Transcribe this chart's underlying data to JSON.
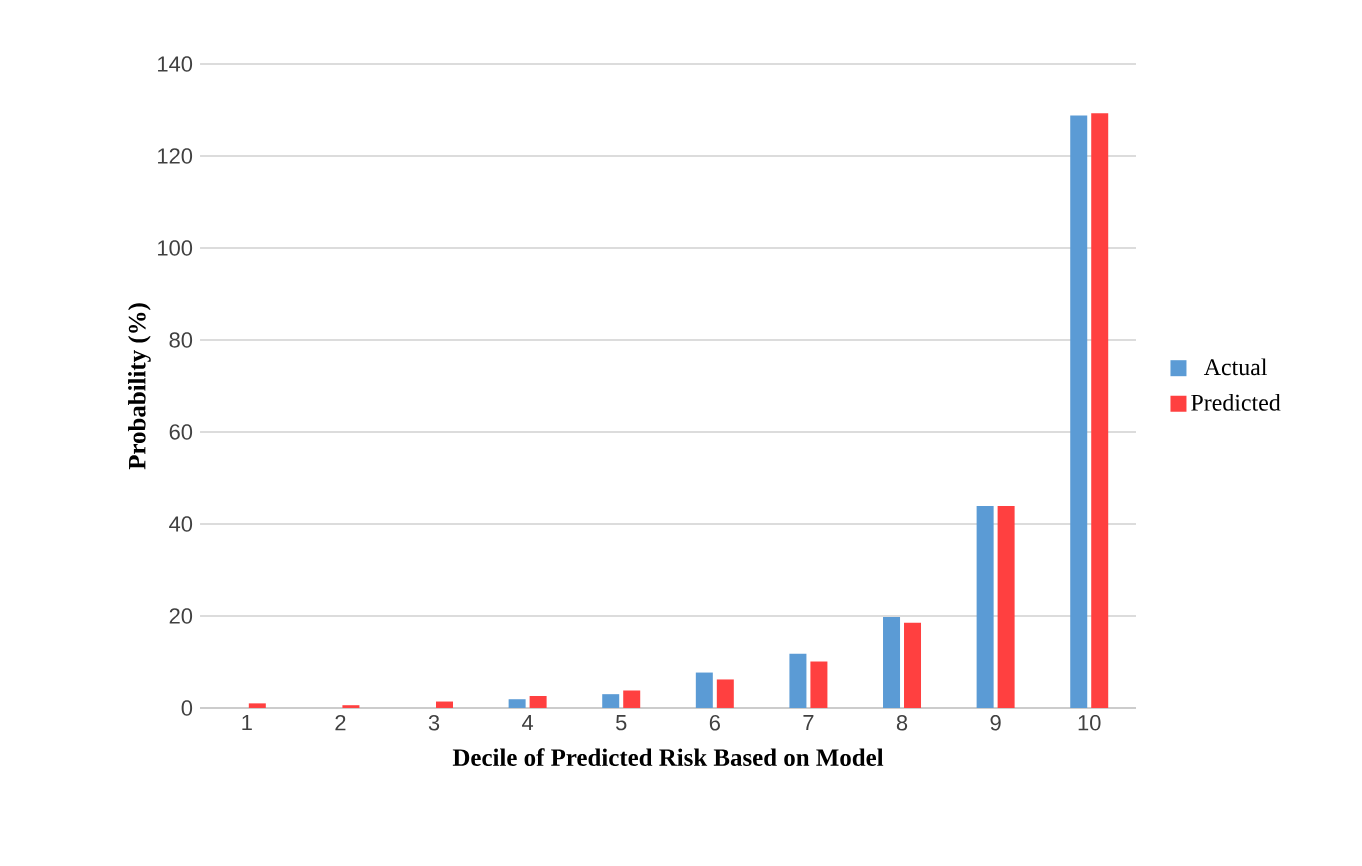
{
  "chart_data": {
    "type": "bar",
    "xlabel": "Decile of Predicted Risk Based on Model",
    "ylabel": "Probability (%)",
    "categories": [
      "1",
      "2",
      "3",
      "4",
      "5",
      "6",
      "7",
      "8",
      "9",
      "10"
    ],
    "series": [
      {
        "name": "Actual",
        "color": "#5b9bd5",
        "values": [
          0,
          0,
          0,
          1.9,
          3.0,
          7.7,
          11.8,
          19.8,
          43.9,
          128.8
        ]
      },
      {
        "name": "Predicted",
        "color": "#ff4040",
        "values": [
          1.0,
          0.6,
          1.4,
          2.6,
          3.8,
          6.2,
          10.1,
          18.5,
          43.9,
          129.3
        ]
      }
    ],
    "ylim": [
      0,
      140
    ],
    "yticks": [
      0,
      20,
      40,
      60,
      80,
      100,
      120,
      140
    ],
    "grid": "y",
    "legend": "right"
  }
}
